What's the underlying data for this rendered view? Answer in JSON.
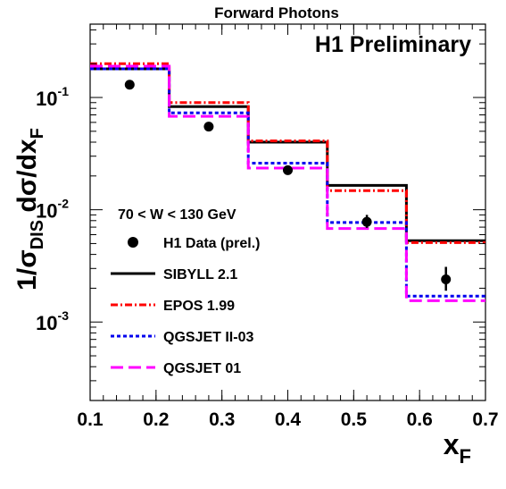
{
  "chart_data": {
    "type": "step",
    "title": "Forward Photons",
    "annotation": "H1 Preliminary",
    "kinematic_cut": "70 < W < 130 GeV",
    "xlabel": {
      "main": "x",
      "sub": "F"
    },
    "ylabel": {
      "prefix": "1/σ",
      "sub1": "DIS",
      "mid": " dσ/dx",
      "sub2": "F"
    },
    "xlim": [
      0.1,
      0.7
    ],
    "ylim": [
      0.0002,
      0.45
    ],
    "yscale": "log",
    "x_ticks": [
      "0.1",
      "0.2",
      "0.3",
      "0.4",
      "0.5",
      "0.6",
      "0.7"
    ],
    "y_ticks": [
      {
        "value": 0.1,
        "base": "10",
        "exp": "-1"
      },
      {
        "value": 0.01,
        "base": "10",
        "exp": "-2"
      },
      {
        "value": 0.001,
        "base": "10",
        "exp": "-3"
      }
    ],
    "bin_edges": [
      0.1,
      0.22,
      0.34,
      0.46,
      0.58,
      0.7
    ],
    "legend_position": "bottom-left",
    "data_series": {
      "name": "H1 Data (prel.)",
      "x": [
        0.16,
        0.28,
        0.4,
        0.52,
        0.64
      ],
      "y": [
        0.13,
        0.055,
        0.0225,
        0.0078,
        0.0024
      ],
      "err_low": [
        0.0,
        0.0,
        0.0018,
        0.0009,
        0.0005
      ],
      "err_high": [
        0.0,
        0.0,
        0.0018,
        0.0012,
        0.0007
      ],
      "color": "#000000"
    },
    "series": [
      {
        "name": "SIBYLL 2.1",
        "values": [
          0.18,
          0.083,
          0.04,
          0.0165,
          0.0053
        ],
        "color": "#000000",
        "dash": "solid"
      },
      {
        "name": "EPOS 1.99",
        "values": [
          0.2,
          0.09,
          0.041,
          0.0148,
          0.0051
        ],
        "color": "#ff0000",
        "dash": "dashdot"
      },
      {
        "name": "QGSJET II-03",
        "values": [
          0.18,
          0.073,
          0.026,
          0.0077,
          0.0017
        ],
        "color": "#0000ee",
        "dash": "dotted"
      },
      {
        "name": "QGSJET 01",
        "values": [
          0.19,
          0.068,
          0.0235,
          0.0068,
          0.00155
        ],
        "color": "#ff00ff",
        "dash": "dashed"
      }
    ]
  }
}
